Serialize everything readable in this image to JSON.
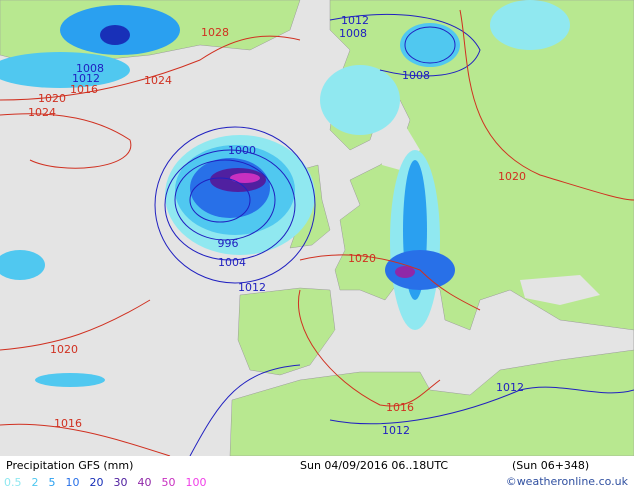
{
  "map": {
    "isobars": [
      {
        "value": 1028,
        "color": "#d03020"
      },
      {
        "value": 1024,
        "color": "#d03020"
      },
      {
        "value": 1008,
        "color": "#2020c0"
      },
      {
        "value": 1012,
        "color": "#2020c0"
      },
      {
        "value": 1016,
        "color": "#d03020"
      },
      {
        "value": 1020,
        "color": "#d03020"
      },
      {
        "value": 1024,
        "color": "#d03020"
      },
      {
        "value": 1012,
        "color": "#2020c0"
      },
      {
        "value": 1008,
        "color": "#2020c0"
      },
      {
        "value": 1008,
        "color": "#2020c0"
      },
      {
        "value": 1000,
        "color": "#2020c0"
      },
      {
        "value": 996,
        "color": "#2020c0"
      },
      {
        "value": 1004,
        "color": "#2020c0"
      },
      {
        "value": 1012,
        "color": "#2020c0"
      },
      {
        "value": 1020,
        "color": "#d03020"
      },
      {
        "value": 1020,
        "color": "#d03020"
      },
      {
        "value": 1020,
        "color": "#d03020"
      },
      {
        "value": 1016,
        "color": "#d03020"
      },
      {
        "value": 1016,
        "color": "#d03020"
      },
      {
        "value": 1012,
        "color": "#2020c0"
      },
      {
        "value": 1012,
        "color": "#2020c0"
      }
    ]
  },
  "footer": {
    "title": "Precipitation GFS (mm)",
    "valid": "Sun 04/09/2016 06..18UTC",
    "run": "(Sun 06+348)",
    "legend": [
      {
        "value": 0.5,
        "color": "#90e8f0"
      },
      {
        "value": 2,
        "color": "#50c8f0"
      },
      {
        "value": 5,
        "color": "#2aa0f0"
      },
      {
        "value": 10,
        "color": "#2870e8"
      },
      {
        "value": 20,
        "color": "#1830b8"
      },
      {
        "value": 30,
        "color": "#5020a0"
      },
      {
        "value": 40,
        "color": "#9028a8"
      },
      {
        "value": 50,
        "color": "#c830c0"
      },
      {
        "value": 100,
        "color": "#f040e8"
      }
    ],
    "credit": "©weatheronline.co.uk"
  }
}
